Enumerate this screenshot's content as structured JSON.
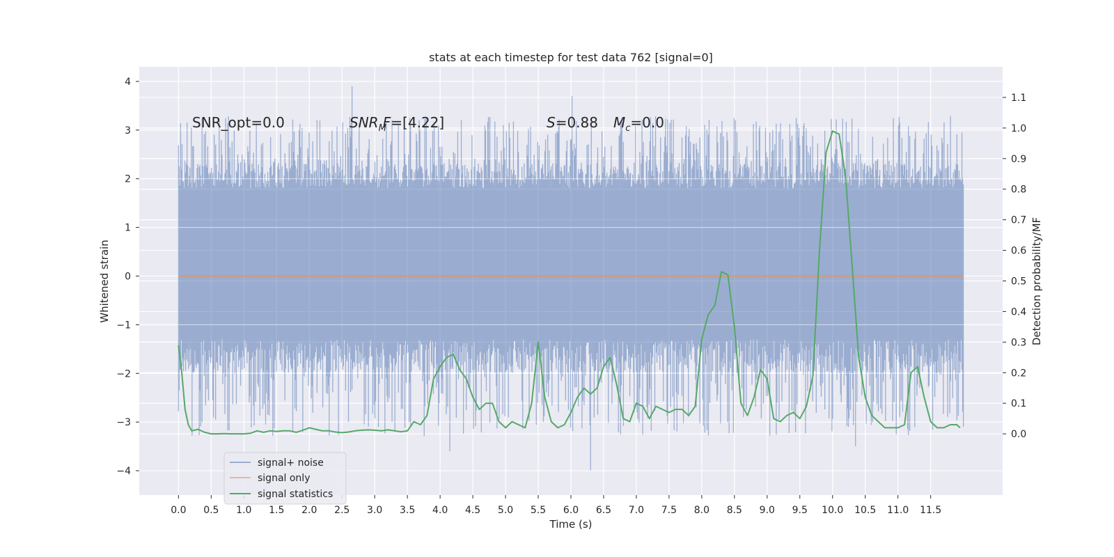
{
  "chart_data": {
    "type": "line",
    "title": "stats at each timestep for test data 762 [signal=0]",
    "xlabel": "Time (s)",
    "ylabel_left": "Whitened strain",
    "ylabel_right": "Detection probability/MF",
    "xlim": [
      -0.6,
      12.6
    ],
    "ylim_left": [
      -4.5,
      4.3
    ],
    "ylim_right": [
      -0.2,
      1.2
    ],
    "x_ticks": [
      0.0,
      0.5,
      1.0,
      1.5,
      2.0,
      2.5,
      3.0,
      3.5,
      4.0,
      4.5,
      5.0,
      5.5,
      6.0,
      6.5,
      7.0,
      7.5,
      8.0,
      8.5,
      9.0,
      9.5,
      10.0,
      10.5,
      11.0,
      11.5
    ],
    "x_tick_labels": [
      "0.0",
      "0.5",
      "1.0",
      "1.5",
      "2.0",
      "2.5",
      "3.0",
      "3.5",
      "4.0",
      "4.5",
      "5.0",
      "5.5",
      "6.0",
      "6.5",
      "7.0",
      "7.5",
      "8.0",
      "8.5",
      "9.0",
      "9.5",
      "10.0",
      "10.5",
      "11.0",
      "11.5"
    ],
    "y_left_ticks": [
      -4,
      -3,
      -2,
      -1,
      0,
      1,
      2,
      3,
      4
    ],
    "y_left_tick_labels": [
      "−4",
      "−3",
      "−2",
      "−1",
      "0",
      "1",
      "2",
      "3",
      "4"
    ],
    "y_right_ticks": [
      0.0,
      0.1,
      0.2,
      0.3,
      0.4,
      0.5,
      0.6,
      0.7,
      0.8,
      0.9,
      1.0,
      1.1
    ],
    "y_right_tick_labels": [
      "0.0",
      "0.1",
      "0.2",
      "0.3",
      "0.4",
      "0.5",
      "0.6",
      "0.7",
      "0.8",
      "0.9",
      "1.0",
      "1.1"
    ],
    "noise_band": {
      "name": "signal+ noise",
      "x_range": [
        0.0,
        12.0
      ],
      "dense_range": [
        -1.3,
        1.8
      ],
      "outer_range": [
        -3.3,
        3.3
      ],
      "extreme_spikes": [
        {
          "x": 2.65,
          "y": 3.9
        },
        {
          "x": 6.02,
          "y": 3.7
        },
        {
          "x": 6.3,
          "y": -4.0
        },
        {
          "x": 4.15,
          "y": -3.6
        },
        {
          "x": 10.35,
          "y": -3.5
        }
      ]
    },
    "series": [
      {
        "name": "signal only",
        "axis": "left",
        "color": "#dd8452",
        "x": [
          0.0,
          12.0
        ],
        "y": [
          0.0,
          0.0
        ]
      },
      {
        "name": "signal statistics",
        "axis": "right",
        "color": "#55a868",
        "x": [
          0.0,
          0.05,
          0.1,
          0.15,
          0.2,
          0.3,
          0.4,
          0.5,
          0.6,
          0.7,
          0.8,
          0.9,
          1.0,
          1.1,
          1.2,
          1.3,
          1.4,
          1.5,
          1.6,
          1.7,
          1.8,
          1.9,
          2.0,
          2.1,
          2.2,
          2.3,
          2.4,
          2.5,
          2.6,
          2.7,
          2.8,
          2.9,
          3.0,
          3.1,
          3.2,
          3.3,
          3.4,
          3.5,
          3.6,
          3.7,
          3.8,
          3.9,
          4.0,
          4.1,
          4.2,
          4.3,
          4.4,
          4.5,
          4.6,
          4.7,
          4.8,
          4.9,
          5.0,
          5.1,
          5.2,
          5.3,
          5.4,
          5.5,
          5.6,
          5.7,
          5.8,
          5.9,
          6.0,
          6.1,
          6.2,
          6.3,
          6.4,
          6.5,
          6.6,
          6.7,
          6.8,
          6.9,
          7.0,
          7.1,
          7.2,
          7.3,
          7.4,
          7.5,
          7.6,
          7.7,
          7.8,
          7.9,
          8.0,
          8.1,
          8.2,
          8.3,
          8.4,
          8.5,
          8.6,
          8.7,
          8.8,
          8.9,
          9.0,
          9.1,
          9.2,
          9.3,
          9.4,
          9.5,
          9.6,
          9.7,
          9.8,
          9.9,
          10.0,
          10.1,
          10.2,
          10.3,
          10.4,
          10.5,
          10.6,
          10.7,
          10.8,
          10.9,
          11.0,
          11.1,
          11.2,
          11.3,
          11.4,
          11.5,
          11.6,
          11.7,
          11.8,
          11.9,
          11.95
        ],
        "y": [
          0.29,
          0.2,
          0.08,
          0.03,
          0.01,
          0.015,
          0.005,
          0.0,
          0.0,
          0.001,
          0.0,
          0.0,
          0.0,
          0.002,
          0.01,
          0.005,
          0.01,
          0.008,
          0.01,
          0.01,
          0.005,
          0.012,
          0.02,
          0.015,
          0.01,
          0.01,
          0.006,
          0.004,
          0.006,
          0.01,
          0.012,
          0.013,
          0.012,
          0.01,
          0.013,
          0.01,
          0.007,
          0.01,
          0.04,
          0.03,
          0.06,
          0.18,
          0.22,
          0.25,
          0.26,
          0.21,
          0.18,
          0.12,
          0.08,
          0.1,
          0.1,
          0.04,
          0.02,
          0.04,
          0.03,
          0.02,
          0.1,
          0.3,
          0.12,
          0.04,
          0.02,
          0.03,
          0.07,
          0.12,
          0.15,
          0.13,
          0.15,
          0.22,
          0.25,
          0.16,
          0.05,
          0.04,
          0.1,
          0.09,
          0.05,
          0.09,
          0.08,
          0.07,
          0.08,
          0.08,
          0.06,
          0.09,
          0.31,
          0.39,
          0.42,
          0.53,
          0.52,
          0.35,
          0.1,
          0.06,
          0.12,
          0.21,
          0.18,
          0.05,
          0.04,
          0.06,
          0.07,
          0.05,
          0.09,
          0.19,
          0.6,
          0.92,
          0.99,
          0.98,
          0.84,
          0.55,
          0.25,
          0.12,
          0.06,
          0.04,
          0.02,
          0.02,
          0.02,
          0.03,
          0.2,
          0.22,
          0.12,
          0.04,
          0.02,
          0.02,
          0.03,
          0.03,
          0.02
        ]
      }
    ],
    "annotations": {
      "snr_opt": "SNR_opt=0.0",
      "snr_mf_base": "SNR",
      "snr_mf_sub": "M",
      "snr_mf_it": "F",
      "snr_mf_val": "=[4.22]",
      "s_sym": "S",
      "s_val": "=0.88",
      "mc_sym": "M",
      "mc_sub": "c",
      "mc_val": "=0.0"
    },
    "legend": {
      "placement": "lower-left",
      "entries": [
        "signal+ noise",
        "signal only",
        "signal statistics"
      ]
    },
    "colors": {
      "background": "#eaeaf2",
      "grid": "#ffffff",
      "noise": "#4c72b0",
      "signal_only": "#dd8452",
      "statistics": "#55a868"
    },
    "grid": true
  }
}
